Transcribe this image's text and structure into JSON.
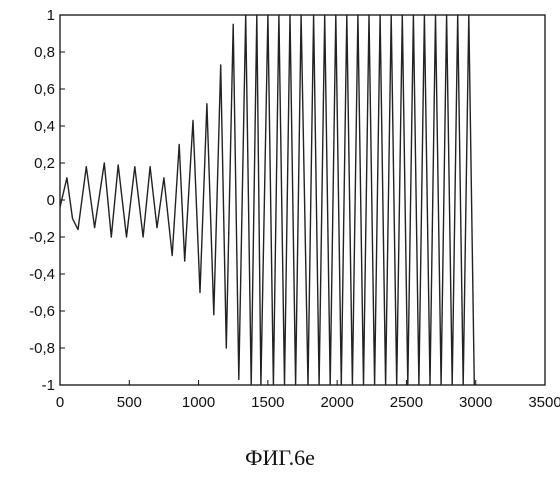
{
  "chart_data": {
    "type": "line",
    "title": "",
    "xlabel": "",
    "ylabel": "",
    "xlim": [
      0,
      3500
    ],
    "ylim": [
      -1,
      1
    ],
    "grid": false,
    "x_ticks": [
      "0",
      "500",
      "1000",
      "1500",
      "2000",
      "2500",
      "3000",
      "3500"
    ],
    "y_ticks": [
      "1",
      "0,8",
      "0,6",
      "0,4",
      "0,2",
      "0",
      "-0,2",
      "-0,4",
      "-0,6",
      "-0,8",
      "-1"
    ],
    "series": [
      {
        "color": "#222222",
        "x": [
          0,
          50,
          90,
          130,
          190,
          250,
          320,
          370,
          420,
          480,
          540,
          600,
          650,
          700,
          750,
          810,
          860,
          900,
          960,
          1010,
          1060,
          1110,
          1160,
          1200,
          1250,
          1290,
          1340,
          1380,
          1420,
          1450,
          1500,
          1540,
          1580,
          1620,
          1660,
          1700,
          1740,
          1790,
          1830,
          1870,
          1910,
          1950,
          1990,
          2030,
          2070,
          2110,
          2150,
          2190,
          2230,
          2270,
          2310,
          2350,
          2390,
          2430,
          2470,
          2510,
          2550,
          2590,
          2630,
          2670,
          2710,
          2750,
          2790,
          2830,
          2870,
          2910,
          2950,
          2990
        ],
        "y": [
          -0.04,
          0.12,
          -0.1,
          -0.16,
          0.18,
          -0.15,
          0.2,
          -0.2,
          0.19,
          -0.2,
          0.18,
          -0.2,
          0.18,
          -0.15,
          0.12,
          -0.3,
          0.3,
          -0.33,
          0.43,
          -0.5,
          0.52,
          -0.62,
          0.73,
          -0.8,
          0.95,
          -0.97,
          1.0,
          -1.0,
          1.0,
          -1.0,
          1.0,
          -1.0,
          1.0,
          -1.0,
          1.0,
          -1.0,
          1.0,
          -1.0,
          1.0,
          -1.0,
          1.0,
          -1.0,
          1.0,
          -1.0,
          1.0,
          -1.0,
          1.0,
          -1.0,
          1.0,
          -1.0,
          1.0,
          -1.0,
          1.0,
          -1.0,
          1.0,
          -1.0,
          1.0,
          -1.0,
          1.0,
          -1.0,
          1.0,
          -1.0,
          1.0,
          -1.0,
          1.0,
          -1.0,
          1.0,
          -1.0
        ]
      }
    ]
  },
  "caption": "ФИГ.6е"
}
